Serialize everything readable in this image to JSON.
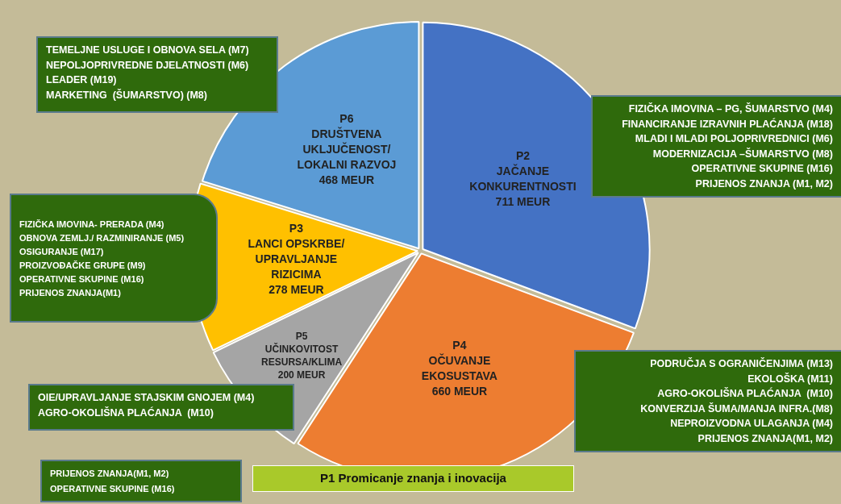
{
  "chart_data": {
    "type": "pie",
    "categories": [
      "P2\nJAČANJE\nKONKURENTNOSTI",
      "P4\nOČUVANJE\nEKOSUSTAVA",
      "P5\nUČINKOVITOST\nRESURSA/KLIMA",
      "P3\nLANCI OPSKRBE/\nUPRAVLJANJE\nRIZICIMA",
      "P6\nDRUŠTVENA\nUKLJUČENOST/\nLOKALNI RAZVOJ"
    ],
    "values": [
      711,
      660,
      200,
      278,
      468
    ],
    "value_labels": [
      "711 MEUR",
      "660 MEUR",
      "200 MEUR",
      "278 MEUR",
      "468 MEUR"
    ],
    "colors": [
      "#4472c4",
      "#ed7d31",
      "#a5a5a5",
      "#ffc000",
      "#5b9bd5"
    ],
    "legend": false,
    "annotations": [
      "TEMELJNE USLUGE I OBNOVA SELA (M7)\nNEPOLJOPRIVREDNE DJELATNOSTI (M6)\nLEADER (M19)\nMARKETING  (ŠUMARSTVO) (M8)",
      "FIZIČKA IMOVINA – PG, ŠUMARSTVO (M4)\nFINANCIRANJE IZRAVNIH PLAĆANJA (M18)\nMLADI I MLADI POLJOPRIVREDNICI (M6)\nMODERNIZACIJA –ŠUMARSTVO (M8)\nOPERATIVNE SKUPINE (M16)\nPRIJENOS ZNANJA (M1, M2)",
      "FIZIČKA IMOVINA- PRERADA (M4)\nOBNOVA ZEMLJ./ RAZMINIRANJE (M5)\nOSIGURANJE (M17)\nPROIZVOĐAČKE GRUPE (M9)\nOPERATIVNE SKUPINE (M16)\nPRIJENOS ZNANJA(M1)",
      "OIE/UPRAVLJANJE STAJSKIM GNOJEM (M4)\nAGRO-OKOLIŠNA PLAĆANJA  (M10)",
      "PODRUČJA S OGRANIČENJIMA (M13)\nEKOLOŠKA (M11)\nAGRO-OKOLIŠNA PLAĆANJA  (M10)\nKONVERZIJA ŠUMA/MANJA INFRA.(M8)\nNEPROIZVODNA ULAGANJA (M4)\nPRIJENOS ZNANJA(M1, M2)",
      "PRIJENOS ZNANJA(M1, M2)\nOPERATIVNE SKUPINE (M16)",
      "P1 Promicanje znanja i inovacija"
    ]
  }
}
